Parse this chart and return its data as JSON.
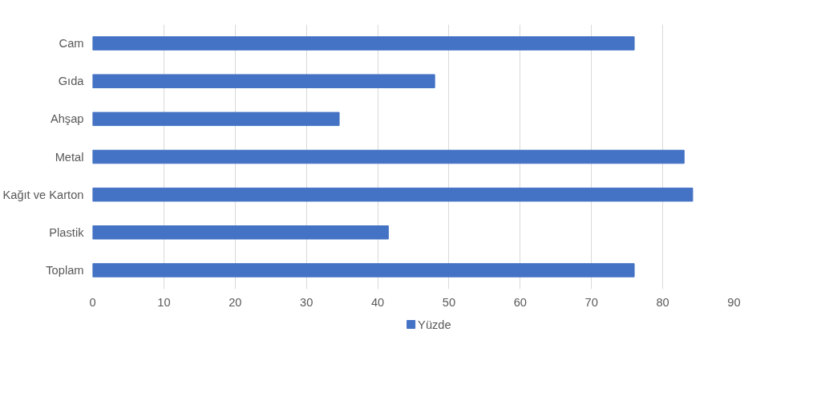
{
  "chart_data": {
    "type": "bar",
    "orientation": "horizontal",
    "categories": [
      "Cam",
      "Gıda",
      "Ahşap",
      "Metal",
      "Kağıt ve Karton",
      "Plastik",
      "Toplam"
    ],
    "series": [
      {
        "name": "Yüzde",
        "color": "#4472c4",
        "values": [
          76,
          48,
          34.6,
          83,
          84.2,
          41.5,
          76
        ]
      }
    ],
    "xlim": [
      0,
      90
    ],
    "xticks": [
      0,
      10,
      20,
      30,
      40,
      50,
      60,
      70,
      80,
      90
    ],
    "grid": "x",
    "legend": "bottom"
  }
}
